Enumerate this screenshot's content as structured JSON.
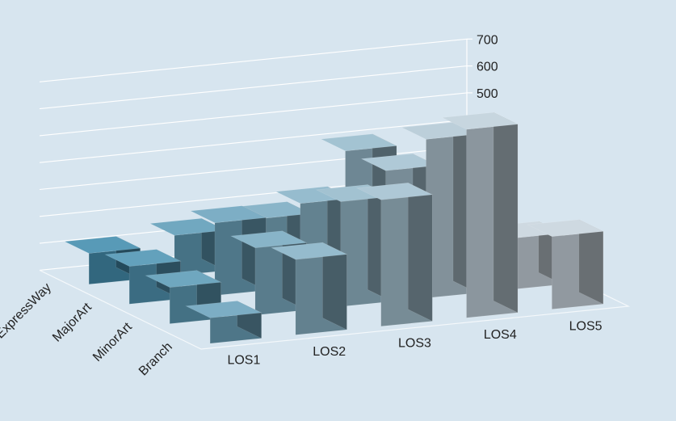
{
  "chart_data": {
    "type": "bar",
    "subtype": "3d-column",
    "title": "",
    "xlabel": "",
    "ylabel": "",
    "ylim": [
      0,
      700
    ],
    "yticks": [
      0,
      100,
      200,
      300,
      400,
      500,
      600,
      700
    ],
    "categories": [
      "LOS1",
      "LOS2",
      "LOS3",
      "LOS4",
      "LOS5"
    ],
    "series": [
      {
        "label": "Branch",
        "values": [
          95,
          280,
          470,
          700,
          270
        ]
      },
      {
        "label": "MinorArt",
        "values": [
          135,
          250,
          390,
          590,
          190
        ]
      },
      {
        "label": "MajorArt",
        "values": [
          140,
          270,
          310,
          400,
          55
        ]
      },
      {
        "label": "ExpressWay",
        "values": [
          115,
          150,
          180,
          400,
          60
        ]
      }
    ],
    "legend": "none",
    "grid": true
  }
}
